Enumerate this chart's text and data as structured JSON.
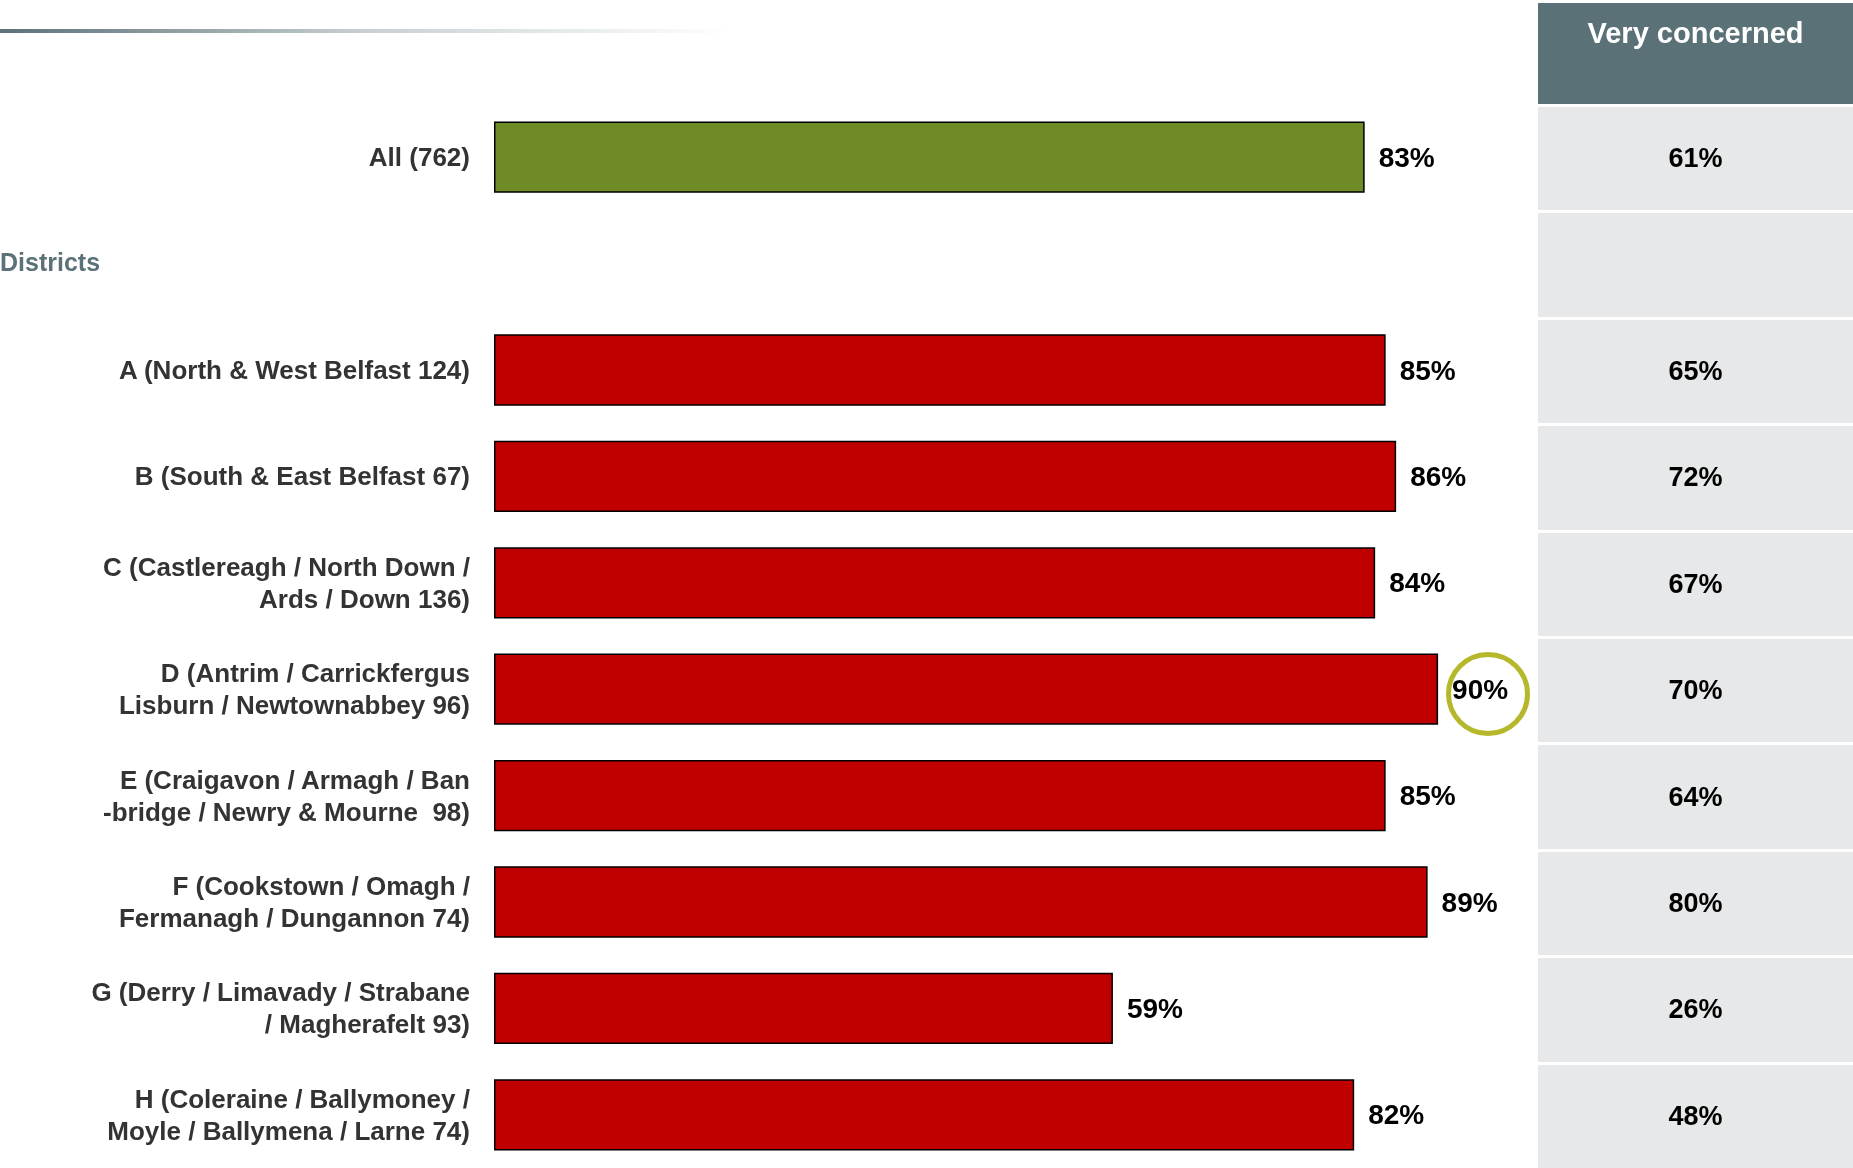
{
  "chart_data": [
    {
      "type": "bar",
      "orientation": "horizontal",
      "categories": [
        "All (762)",
        null,
        "A (North & West Belfast 124)",
        "B (South & East Belfast 67)",
        "C (Castlereagh / North Down /\nArds / Down 136)",
        "D (Antrim / Carrickfergus\nLisburn / Newtownabbey 96)",
        "E (Craigavon / Armagh / Ban\n-bridge / Newry & Mourne  98)",
        "F (Cookstown / Omagh /\nFermanagh / Dungannon 74)",
        "G (Derry / Limavady / Strabane\n/ Magherafelt 93)",
        "H (Coleraine / Ballymoney /\nMoyle / Ballymena / Larne 74)"
      ],
      "values": [
        83,
        null,
        85,
        86,
        84,
        90,
        85,
        89,
        59,
        82
      ],
      "value_labels": [
        "83%",
        null,
        "85%",
        "86%",
        "84%",
        "90%",
        "85%",
        "89%",
        "59%",
        "82%"
      ],
      "colors": [
        "#6e8b26",
        null,
        "#c00000",
        "#c00000",
        "#c00000",
        "#c00000",
        "#c00000",
        "#c00000",
        "#c00000",
        "#c00000"
      ],
      "tick_labels": "y",
      "grid": false,
      "annotations": [
        "Districts"
      ]
    },
    {
      "type": "other",
      "title": "Very concerned",
      "annotations": [
        "61%",
        "65%",
        "72%",
        "67%",
        "70%",
        "64%",
        "80%",
        "26%",
        "48%"
      ]
    }
  ]
}
